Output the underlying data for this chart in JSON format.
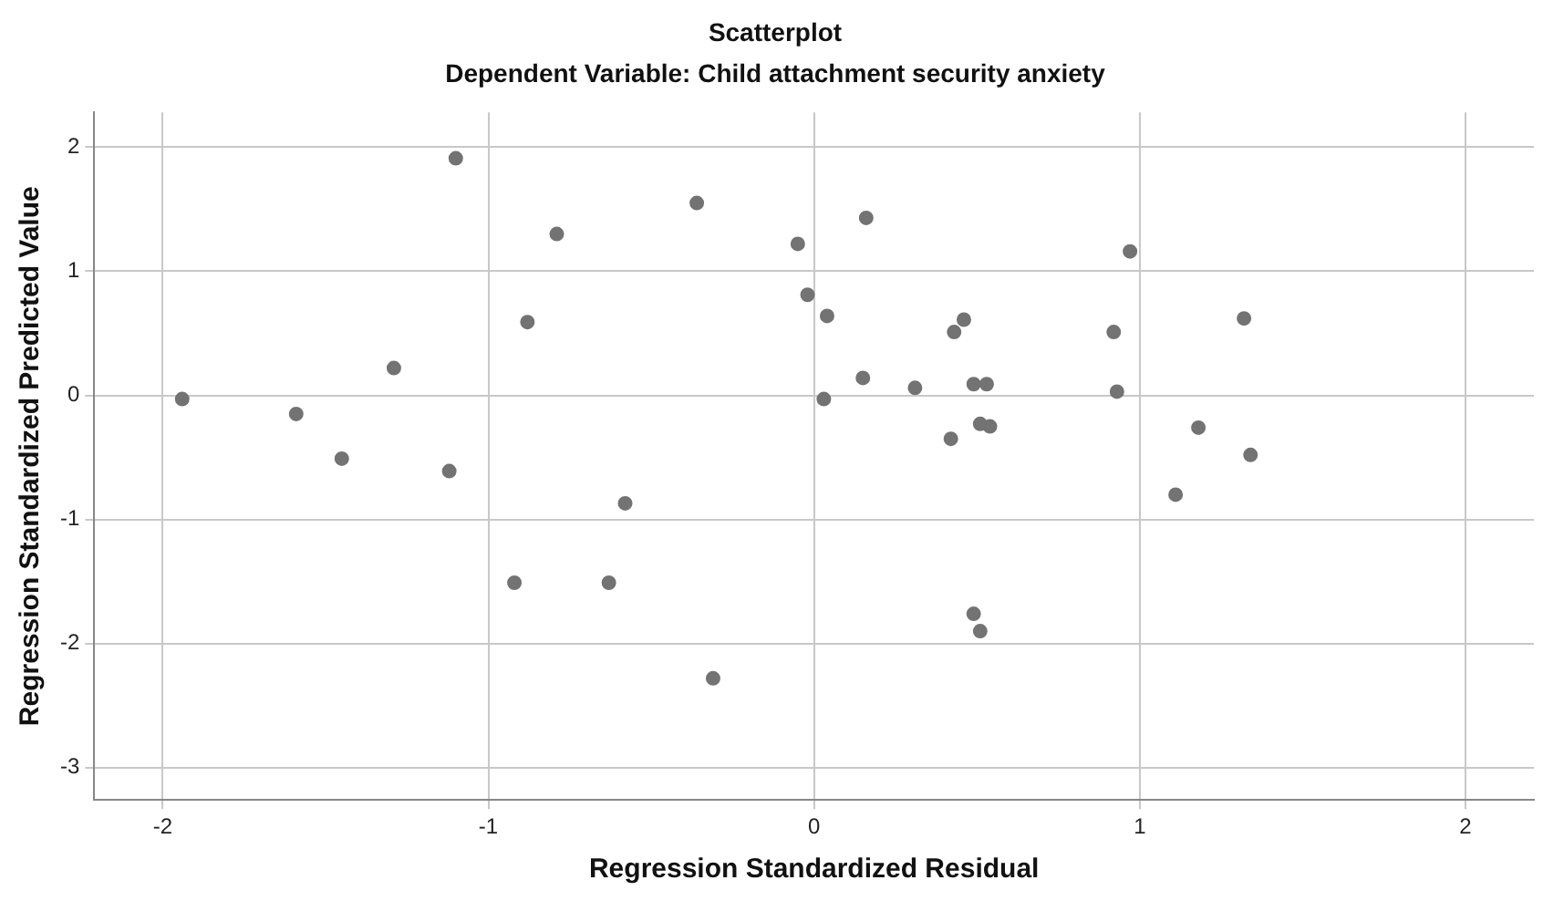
{
  "chart_data": {
    "type": "scatter",
    "title": "Scatterplot",
    "subtitle": "Dependent Variable: Child attachment security anxiety",
    "xlabel": "Regression Standardized Residual",
    "ylabel": "Regression Standardized Predicted Value",
    "x": [
      -1.94,
      -1.59,
      -1.45,
      -1.29,
      -1.12,
      -1.1,
      -0.92,
      -0.88,
      -0.79,
      -0.63,
      -0.58,
      -0.31,
      -0.36,
      -0.05,
      -0.02,
      0.04,
      0.03,
      0.16,
      0.15,
      0.31,
      0.42,
      0.43,
      0.46,
      0.49,
      0.53,
      0.51,
      0.54,
      0.49,
      0.51,
      0.92,
      0.93,
      0.97,
      1.11,
      1.18,
      1.32,
      1.34
    ],
    "series": [
      {
        "color": "#737373",
        "values": [
          -0.03,
          -0.15,
          -0.51,
          0.22,
          -0.61,
          1.91,
          -1.51,
          0.59,
          1.3,
          -1.51,
          -0.87,
          -2.28,
          1.55,
          1.22,
          0.81,
          0.64,
          -0.03,
          1.43,
          0.14,
          0.06,
          -0.35,
          0.51,
          0.61,
          0.09,
          0.09,
          -0.23,
          -0.25,
          -1.76,
          -1.9,
          0.51,
          0.03,
          1.16,
          -0.8,
          -0.26,
          0.62,
          -0.48
        ]
      }
    ],
    "xlim": [
      -2.21,
      2.21
    ],
    "ylim": [
      -3.26,
      2.28
    ],
    "xticks": [
      -2,
      -1,
      0,
      1,
      2
    ],
    "yticks": [
      -3,
      -2,
      -1,
      0,
      1,
      2
    ],
    "grid": true,
    "marker": "circle",
    "legend": false
  }
}
